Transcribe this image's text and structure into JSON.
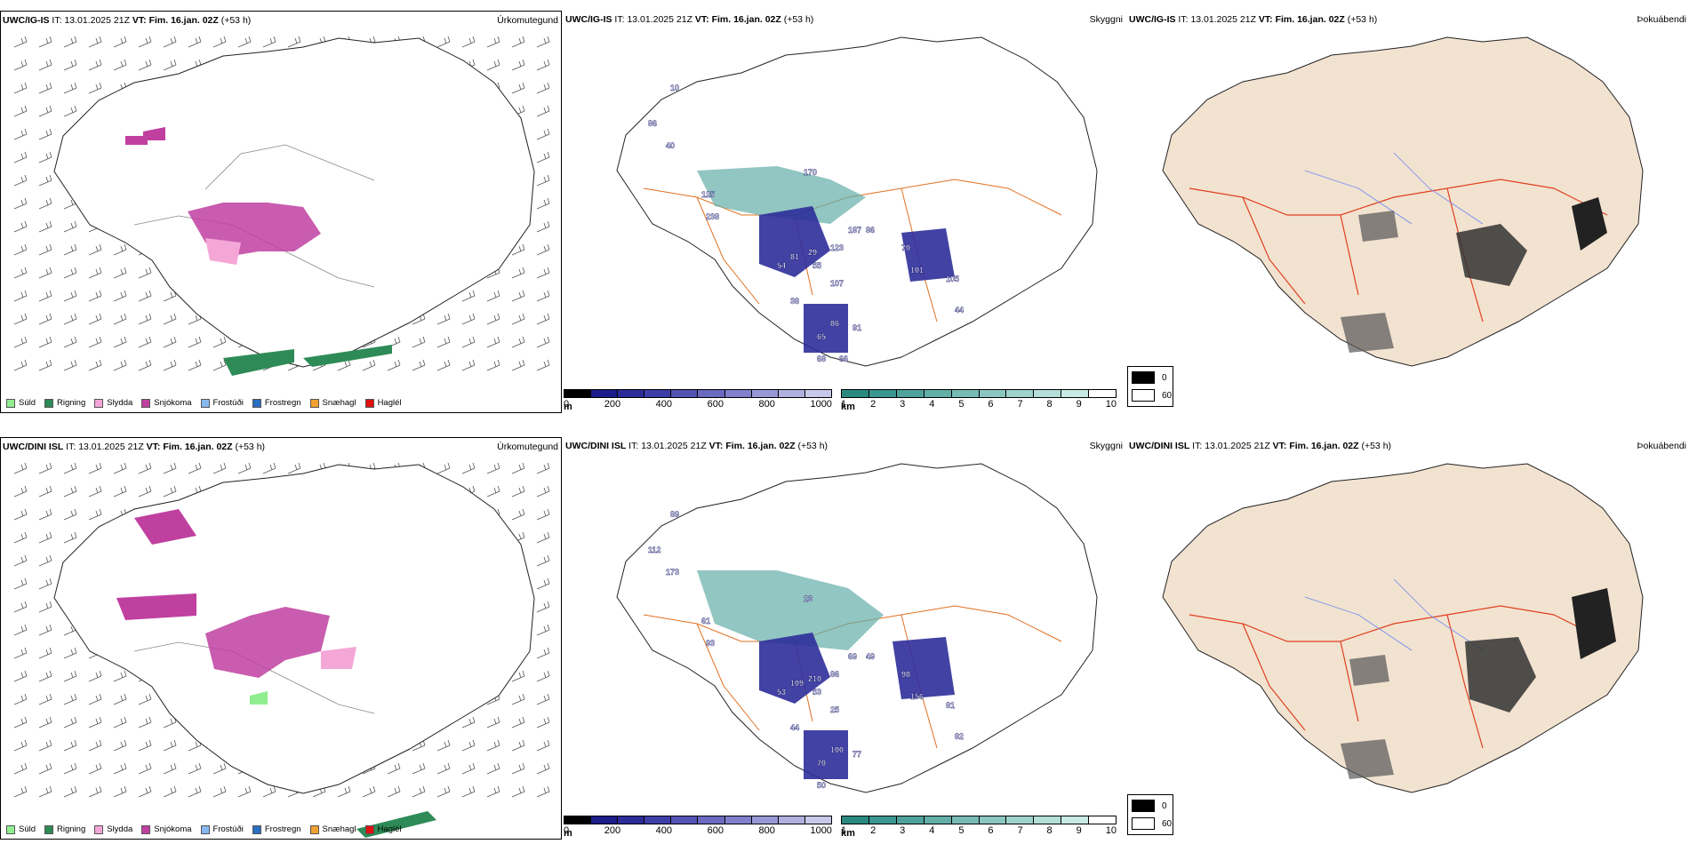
{
  "rows": [
    {
      "model": "UWC/IG-IS",
      "it_label": "IT:",
      "it": "13.01.2025 21Z",
      "vt_label": "VT: Fim. 16.jan. 02Z",
      "lead": "(+53 h)"
    },
    {
      "model": "UWC/DINI ISL",
      "it_label": "IT:",
      "it": "13.01.2025 21Z",
      "vt_label": "VT: Fim. 16.jan. 02Z",
      "lead": "(+53 h)"
    }
  ],
  "panel_titles": {
    "precip_type": "Úrkomutegund",
    "visibility": "Skyggni",
    "fog": "Þokuábendi"
  },
  "precip_legend": [
    {
      "label": "Súld",
      "color": "#90ee90"
    },
    {
      "label": "Rigning",
      "color": "#2e8b57"
    },
    {
      "label": "Slydda",
      "color": "#f4a6d7"
    },
    {
      "label": "Snjókoma",
      "color": "#c040a0"
    },
    {
      "label": "Frostúði",
      "color": "#87b8f0"
    },
    {
      "label": "Frostregn",
      "color": "#2a6fc0"
    },
    {
      "label": "Snæhagl",
      "color": "#f0a030"
    },
    {
      "label": "Haglél",
      "color": "#e01010"
    }
  ],
  "cloud_base_bar": {
    "unit": "m",
    "ticks": [
      "0",
      "200",
      "400",
      "600",
      "800",
      "1000"
    ],
    "colors": [
      "#000000",
      "#1c1c8a",
      "#2d2d9a",
      "#3e3ea8",
      "#5353b4",
      "#6a6ac0",
      "#8080cc",
      "#9898d6",
      "#b0b0e0",
      "#c8c8ea"
    ]
  },
  "visibility_bar": {
    "unit": "km",
    "ticks": [
      "1",
      "2",
      "3",
      "4",
      "5",
      "6",
      "7",
      "8",
      "9",
      "10"
    ],
    "colors": [
      "#2a8a80",
      "#3c9690",
      "#50a29c",
      "#64aea8",
      "#78bab4",
      "#8cc6c0",
      "#a0d2cc",
      "#b4ded8",
      "#c8eae4",
      "#ffffff"
    ]
  },
  "fog_legend": [
    {
      "label": "0",
      "color": "#000000"
    },
    {
      "label": "60",
      "color": "#ffffff"
    }
  ],
  "visibility_labels": [
    [
      "10",
      "86",
      "40",
      "170",
      "125",
      "238",
      "81",
      "29",
      "123",
      "187",
      "86",
      "70",
      "54",
      "55",
      "101",
      "107",
      "105",
      "38",
      "44",
      "86",
      "91",
      "65",
      "68",
      "66"
    ],
    [
      "89",
      "112",
      "173",
      "23",
      "61",
      "93",
      "109",
      "210",
      "86",
      "69",
      "49",
      "98",
      "53",
      "53",
      "156",
      "25",
      "81",
      "44",
      "82",
      "100",
      "77",
      "70",
      "50"
    ]
  ]
}
